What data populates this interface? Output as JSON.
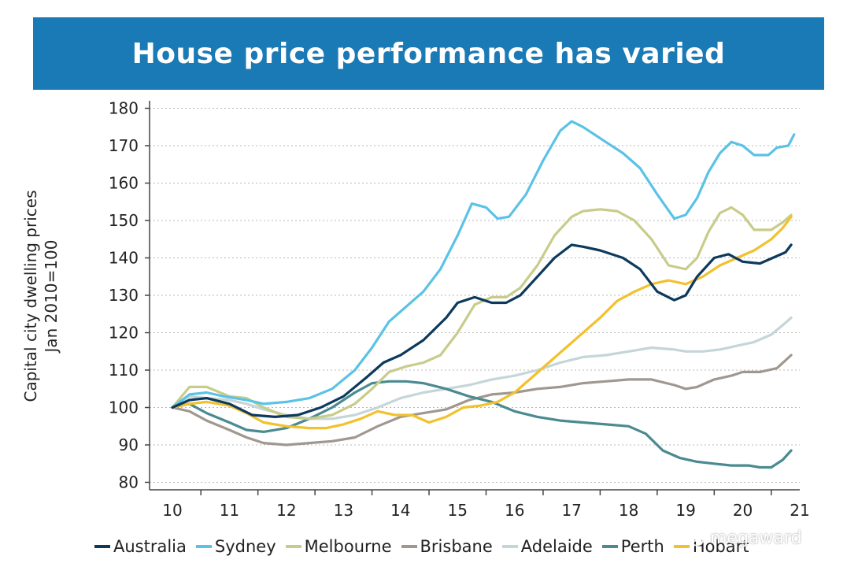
{
  "banner": {
    "title": "House price performance has varied",
    "color": "#1a7ab5"
  },
  "watermark": {
    "text": "megaward",
    "icon": "wechat-icon"
  },
  "chart_data": {
    "type": "line",
    "title": "House price performance has varied",
    "ylabel_lines": [
      "Capital city dwelling prices",
      "Jan 2010=100"
    ],
    "xlabel": "",
    "ylim": [
      78,
      182
    ],
    "xlim": [
      2009.6,
      2021.0
    ],
    "yticks": [
      80,
      90,
      100,
      110,
      120,
      130,
      140,
      150,
      160,
      170,
      180
    ],
    "xticks": [
      "10",
      "11",
      "12",
      "13",
      "14",
      "15",
      "16",
      "17",
      "18",
      "19",
      "20",
      "21"
    ],
    "grid": "horizontal dotted",
    "legend_position": "bottom",
    "series": [
      {
        "name": "Australia",
        "color": "#0d3a5c",
        "x": [
          2010.0,
          2010.3,
          2010.6,
          2011.0,
          2011.4,
          2011.8,
          2012.2,
          2012.6,
          2013.0,
          2013.4,
          2013.7,
          2014.0,
          2014.4,
          2014.8,
          2015.0,
          2015.3,
          2015.6,
          2015.85,
          2016.1,
          2016.4,
          2016.7,
          2017.0,
          2017.2,
          2017.5,
          2017.9,
          2018.2,
          2018.5,
          2018.8,
          2019.0,
          2019.2,
          2019.5,
          2019.75,
          2020.0,
          2020.3,
          2020.6,
          2020.75,
          2020.85
        ],
        "y": [
          100,
          102,
          102.5,
          101,
          98,
          97.5,
          98,
          100,
          103,
          108,
          112,
          114,
          118,
          124,
          128,
          129.5,
          128,
          128,
          130,
          135,
          140,
          143.5,
          143,
          142,
          140,
          137,
          131,
          128.7,
          130,
          135,
          140,
          141,
          139,
          138.5,
          140.5,
          141.5,
          143.5
        ]
      },
      {
        "name": "Sydney",
        "color": "#5bc2e7",
        "x": [
          2010.0,
          2010.3,
          2010.6,
          2010.9,
          2011.3,
          2011.6,
          2012.0,
          2012.4,
          2012.8,
          2013.2,
          2013.5,
          2013.8,
          2014.1,
          2014.4,
          2014.7,
          2015.0,
          2015.25,
          2015.5,
          2015.7,
          2015.9,
          2016.2,
          2016.5,
          2016.8,
          2017.0,
          2017.2,
          2017.6,
          2017.9,
          2018.2,
          2018.5,
          2018.8,
          2019.0,
          2019.2,
          2019.4,
          2019.6,
          2019.8,
          2020.0,
          2020.2,
          2020.45,
          2020.6,
          2020.8,
          2020.9
        ],
        "y": [
          100,
          103.5,
          104,
          103,
          102,
          101,
          101.5,
          102.5,
          105,
          110,
          116,
          123,
          127,
          131,
          137,
          146,
          154.5,
          153.5,
          150.5,
          151,
          157,
          166,
          174,
          176.5,
          175,
          171,
          168,
          164,
          157,
          150.5,
          151.5,
          156,
          163,
          168,
          171,
          170,
          167.5,
          167.5,
          169.5,
          170,
          173
        ]
      },
      {
        "name": "Melbourne",
        "color": "#c8cc8a",
        "x": [
          2010.0,
          2010.3,
          2010.6,
          2011.0,
          2011.3,
          2011.6,
          2012.0,
          2012.4,
          2012.8,
          2013.2,
          2013.5,
          2013.8,
          2014.1,
          2014.4,
          2014.7,
          2015.0,
          2015.3,
          2015.6,
          2015.85,
          2016.1,
          2016.4,
          2016.7,
          2017.0,
          2017.2,
          2017.5,
          2017.8,
          2018.1,
          2018.4,
          2018.7,
          2019.0,
          2019.2,
          2019.4,
          2019.6,
          2019.8,
          2020.0,
          2020.2,
          2020.5,
          2020.7,
          2020.85
        ],
        "y": [
          100,
          105.5,
          105.5,
          103,
          102.5,
          100,
          97.5,
          97,
          98,
          101,
          105,
          109.5,
          111,
          112,
          114,
          120,
          127.5,
          129.5,
          129.5,
          132,
          138,
          146,
          151,
          152.5,
          153,
          152.5,
          150,
          145,
          138,
          137,
          140,
          147,
          152,
          153.5,
          151.5,
          147.5,
          147.5,
          149.5,
          151.5
        ]
      },
      {
        "name": "Brisbane",
        "color": "#a09890",
        "x": [
          2010.0,
          2010.3,
          2010.6,
          2011.0,
          2011.3,
          2011.6,
          2012.0,
          2012.4,
          2012.8,
          2013.2,
          2013.6,
          2014.0,
          2014.4,
          2014.8,
          2015.2,
          2015.6,
          2016.0,
          2016.4,
          2016.8,
          2017.2,
          2017.6,
          2018.0,
          2018.4,
          2018.8,
          2019.0,
          2019.2,
          2019.5,
          2019.8,
          2020.0,
          2020.3,
          2020.6,
          2020.85
        ],
        "y": [
          100,
          99,
          96.5,
          94,
          92,
          90.5,
          90,
          90.5,
          91,
          92,
          95,
          97.5,
          98.5,
          99.5,
          102,
          103.5,
          104,
          105,
          105.5,
          106.5,
          107,
          107.5,
          107.5,
          106,
          105,
          105.5,
          107.5,
          108.5,
          109.5,
          109.5,
          110.5,
          114
        ]
      },
      {
        "name": "Adelaide",
        "color": "#c5d6d8",
        "x": [
          2010.0,
          2010.3,
          2010.6,
          2011.0,
          2011.3,
          2011.6,
          2012.0,
          2012.4,
          2012.8,
          2013.2,
          2013.6,
          2014.0,
          2014.4,
          2014.8,
          2015.2,
          2015.6,
          2016.0,
          2016.4,
          2016.8,
          2017.2,
          2017.6,
          2018.0,
          2018.4,
          2018.8,
          2019.0,
          2019.3,
          2019.6,
          2019.9,
          2020.2,
          2020.5,
          2020.7,
          2020.85
        ],
        "y": [
          100,
          103,
          102.5,
          102,
          101,
          99.5,
          98,
          97,
          97,
          98,
          100,
          102.5,
          104,
          105,
          106,
          107.5,
          108.5,
          110,
          112,
          113.5,
          114,
          115,
          116,
          115.5,
          115,
          115,
          115.5,
          116.5,
          117.5,
          119.5,
          122,
          124
        ]
      },
      {
        "name": "Perth",
        "color": "#4a8a90",
        "x": [
          2010.0,
          2010.3,
          2010.6,
          2011.0,
          2011.3,
          2011.6,
          2012.0,
          2012.4,
          2012.8,
          2013.2,
          2013.5,
          2013.8,
          2014.1,
          2014.4,
          2014.8,
          2015.2,
          2015.6,
          2016.0,
          2016.4,
          2016.8,
          2017.2,
          2017.6,
          2018.0,
          2018.3,
          2018.6,
          2018.9,
          2019.2,
          2019.5,
          2019.8,
          2020.1,
          2020.3,
          2020.5,
          2020.7,
          2020.85
        ],
        "y": [
          100,
          101,
          98.5,
          96,
          94,
          93.5,
          94.5,
          97,
          100,
          104,
          106.5,
          107,
          107,
          106.5,
          105,
          103,
          101.5,
          99,
          97.5,
          96.5,
          96,
          95.5,
          95,
          93,
          88.5,
          86.5,
          85.5,
          85,
          84.5,
          84.5,
          84,
          84,
          86,
          88.5
        ]
      },
      {
        "name": "Hobart",
        "color": "#f2c12e",
        "x": [
          2010.0,
          2010.3,
          2010.6,
          2011.0,
          2011.3,
          2011.6,
          2012.0,
          2012.4,
          2012.7,
          2013.0,
          2013.3,
          2013.6,
          2013.9,
          2014.2,
          2014.5,
          2014.8,
          2015.1,
          2015.4,
          2015.7,
          2016.0,
          2016.3,
          2016.6,
          2016.9,
          2017.2,
          2017.5,
          2017.8,
          2018.1,
          2018.4,
          2018.7,
          2019.0,
          2019.3,
          2019.6,
          2019.9,
          2020.2,
          2020.5,
          2020.7,
          2020.85
        ],
        "y": [
          100,
          101,
          101.5,
          100.5,
          98.5,
          96,
          95,
          94.5,
          94.5,
          95.5,
          97,
          99,
          98,
          98,
          96,
          97.5,
          100,
          100.5,
          101.5,
          104,
          108,
          112,
          116,
          120,
          124,
          128.5,
          131,
          133,
          134,
          133,
          135,
          138,
          140,
          142,
          145,
          148,
          151
        ]
      }
    ]
  }
}
